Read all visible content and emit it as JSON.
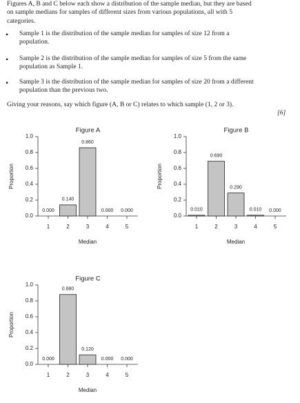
{
  "question": {
    "intro": "Figures A, B and C below each show a distribution of the sample median, but they are based on sample medians for samples of different sizes from various populations, all with 5 categories.",
    "bullets": [
      "Sample 1 is the distribution of the sample median for samples of size 12 from a population.",
      "Sample 2 is the distribution of the sample median for samples of size 5 from the same population as Sample 1.",
      "Sample 3 is the distribution of the sample median for samples of size 20 from a different population than the previous two."
    ],
    "prompt": "Giving your reasons, say which figure (A, B or C) relates to which sample (1, 2 or 3).",
    "marks": "[6]"
  },
  "chart_data": [
    {
      "type": "bar",
      "title": "Figure A",
      "x_label": "Median",
      "y_label": "Proportion",
      "color": "#c4c4c4",
      "categories": [
        "1",
        "2",
        "3",
        "4",
        "5"
      ],
      "values": [
        0,
        0.14,
        0.86,
        0,
        0
      ],
      "value_labels": [
        "0.000",
        "0.140",
        "0.860",
        "0.000",
        "0.000"
      ],
      "ylim": [
        0,
        1
      ],
      "yticks": [
        {
          "value": 0,
          "label": "0.0"
        },
        {
          "value": 0.2,
          "label": "0.2"
        },
        {
          "value": 0.4,
          "label": "0.4"
        },
        {
          "value": 0.6,
          "label": "0.6"
        },
        {
          "value": 0.8,
          "label": "0.8"
        },
        {
          "value": 1,
          "label": "1.0"
        }
      ]
    },
    {
      "type": "bar",
      "title": "Figure B",
      "x_label": "Median",
      "y_label": "Proportion",
      "color": "#c4c4c4",
      "categories": [
        "1",
        "2",
        "3",
        "4",
        "5"
      ],
      "values": [
        0.01,
        0.69,
        0.29,
        0.01,
        0
      ],
      "value_labels": [
        "0.010",
        "0.690",
        "0.290",
        "0.010",
        "0.000"
      ],
      "ylim": [
        0,
        1
      ],
      "yticks": [
        {
          "value": 0,
          "label": "0.0"
        },
        {
          "value": 0.2,
          "label": "0.2"
        },
        {
          "value": 0.4,
          "label": "0.4"
        },
        {
          "value": 0.6,
          "label": "0.6"
        },
        {
          "value": 0.8,
          "label": "0.8"
        },
        {
          "value": 1,
          "label": "1.0"
        }
      ]
    },
    {
      "type": "bar",
      "title": "Figure C",
      "x_label": "Median",
      "y_label": "Proportion",
      "color": "#c4c4c4",
      "categories": [
        "1",
        "2",
        "3",
        "4",
        "5"
      ],
      "values": [
        0,
        0.88,
        0.12,
        0,
        0
      ],
      "value_labels": [
        "0.000",
        "0.880",
        "0.120",
        "0.000",
        "0.000"
      ],
      "ylim": [
        0,
        1
      ],
      "yticks": [
        {
          "value": 0,
          "label": "0.0"
        },
        {
          "value": 0.2,
          "label": "0.2"
        },
        {
          "value": 0.4,
          "label": "0.4"
        },
        {
          "value": 0.6,
          "label": "0.6"
        },
        {
          "value": 0.8,
          "label": "0.8"
        },
        {
          "value": 1,
          "label": "1.0"
        }
      ]
    }
  ]
}
